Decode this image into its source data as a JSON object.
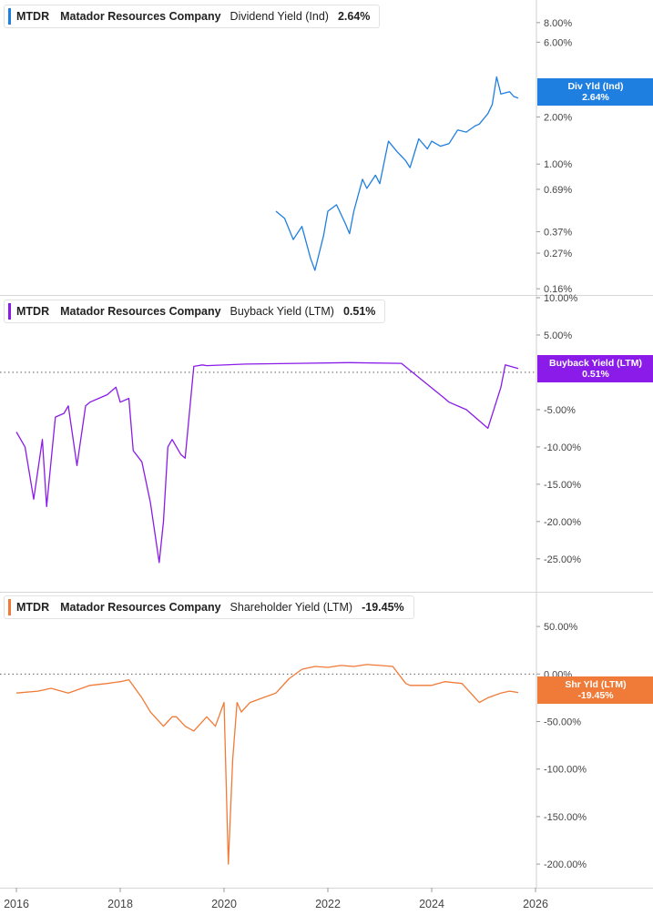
{
  "chart_data": [
    {
      "type": "line",
      "ticker": "MTDR",
      "company": "Matador Resources Company",
      "metric": "Dividend Yield (Ind)",
      "current_value": "2.64%",
      "tag_label": "Div Yld (Ind)",
      "tag_value": "2.64%",
      "color": "#1f7fe0",
      "y_scale": "log",
      "ylim": [
        0.15,
        9.5
      ],
      "y_ticks": [
        {
          "value": 8,
          "label": "8.00%"
        },
        {
          "value": 6,
          "label": "6.00%"
        },
        {
          "value": 2,
          "label": "2.00%"
        },
        {
          "value": 1,
          "label": "1.00%"
        },
        {
          "value": 0.69,
          "label": "0.69%"
        },
        {
          "value": 0.37,
          "label": "0.37%"
        },
        {
          "value": 0.27,
          "label": "0.27%"
        },
        {
          "value": 0.16,
          "label": "0.16%"
        }
      ],
      "series": [
        {
          "x": [
            "2021-01",
            "2021-03",
            "2021-05",
            "2021-07",
            "2021-09",
            "2021-10",
            "2021-12",
            "2022-01",
            "2022-03",
            "2022-05",
            "2022-06",
            "2022-07",
            "2022-09",
            "2022-10",
            "2022-12",
            "2023-01",
            "2023-03",
            "2023-05",
            "2023-07",
            "2023-08",
            "2023-10",
            "2023-12",
            "2024-01",
            "2024-03",
            "2024-05",
            "2024-07",
            "2024-09",
            "2024-11",
            "2024-12",
            "2025-02",
            "2025-03",
            "2025-04",
            "2025-05",
            "2025-07",
            "2025-08",
            "2025-09"
          ],
          "values": [
            0.5,
            0.45,
            0.33,
            0.4,
            0.25,
            0.21,
            0.35,
            0.5,
            0.55,
            0.42,
            0.36,
            0.5,
            0.8,
            0.7,
            0.85,
            0.75,
            1.4,
            1.2,
            1.05,
            0.95,
            1.45,
            1.25,
            1.4,
            1.3,
            1.35,
            1.65,
            1.6,
            1.75,
            1.8,
            2.1,
            2.4,
            3.6,
            2.8,
            2.9,
            2.7,
            2.64
          ]
        }
      ]
    },
    {
      "type": "line",
      "ticker": "MTDR",
      "company": "Matador Resources Company",
      "metric": "Buyback Yield (LTM)",
      "current_value": "0.51%",
      "tag_label": "Buyback Yield (LTM)",
      "tag_value": "0.51%",
      "color": "#8a1be8",
      "y_scale": "linear",
      "ylim": [
        -26,
        10
      ],
      "y_ticks": [
        {
          "value": 10,
          "label": "10.00%"
        },
        {
          "value": 5,
          "label": "5.00%"
        },
        {
          "value": -5,
          "label": "-5.00%"
        },
        {
          "value": -10,
          "label": "-10.00%"
        },
        {
          "value": -15,
          "label": "-15.00%"
        },
        {
          "value": -20,
          "label": "-20.00%"
        },
        {
          "value": -25,
          "label": "-25.00%"
        }
      ],
      "series": [
        {
          "x": [
            "2016-01",
            "2016-03",
            "2016-05",
            "2016-07",
            "2016-08",
            "2016-10",
            "2016-12",
            "2017-01",
            "2017-03",
            "2017-05",
            "2017-06",
            "2017-08",
            "2017-10",
            "2017-12",
            "2018-01",
            "2018-03",
            "2018-04",
            "2018-06",
            "2018-08",
            "2018-10",
            "2018-11",
            "2018-12",
            "2019-01",
            "2019-03",
            "2019-04",
            "2019-06",
            "2019-07",
            "2019-08",
            "2019-09",
            "2020-06",
            "2021-06",
            "2022-06",
            "2023-06",
            "2024-04",
            "2024-05",
            "2024-09",
            "2025-02",
            "2025-05",
            "2025-06",
            "2025-09"
          ],
          "values": [
            -8,
            -10,
            -17,
            -9,
            -18,
            -6,
            -5.5,
            -4.5,
            -12.5,
            -4.5,
            -4,
            -3.5,
            -3,
            -2,
            -4,
            -3.5,
            -10.5,
            -12,
            -17.5,
            -25.5,
            -20,
            -10,
            -9,
            -11,
            -11.5,
            0.8,
            0.9,
            1,
            0.9,
            1.1,
            1.2,
            1.3,
            1.2,
            -3.5,
            -4,
            -5,
            -7.5,
            -2,
            1,
            0.51
          ]
        }
      ]
    },
    {
      "type": "line",
      "ticker": "MTDR",
      "company": "Matador Resources Company",
      "metric": "Shareholder Yield (LTM)",
      "current_value": "-19.45%",
      "tag_label": "Shr Yld (LTM)",
      "tag_value": "-19.45%",
      "color": "#f07a37",
      "y_scale": "linear",
      "ylim": [
        -220,
        75
      ],
      "y_ticks": [
        {
          "value": 50,
          "label": "50.00%"
        },
        {
          "value": 0,
          "label": "0.00%"
        },
        {
          "value": -50,
          "label": "-50.00%"
        },
        {
          "value": -100,
          "label": "-100.00%"
        },
        {
          "value": -150,
          "label": "-150.00%"
        },
        {
          "value": -200,
          "label": "-200.00%"
        }
      ],
      "series": [
        {
          "x": [
            "2016-01",
            "2016-06",
            "2016-09",
            "2017-01",
            "2017-06",
            "2017-10",
            "2018-01",
            "2018-03",
            "2018-06",
            "2018-08",
            "2018-11",
            "2018-12",
            "2019-01",
            "2019-02",
            "2019-04",
            "2019-06",
            "2019-09",
            "2019-11",
            "2020-01",
            "2020-02",
            "2020-03",
            "2020-04",
            "2020-05",
            "2020-07",
            "2020-10",
            "2021-01",
            "2021-04",
            "2021-07",
            "2021-10",
            "2022-01",
            "2022-04",
            "2022-07",
            "2022-10",
            "2023-01",
            "2023-04",
            "2023-07",
            "2023-08",
            "2024-01",
            "2024-04",
            "2024-08",
            "2024-12",
            "2025-02",
            "2025-05",
            "2025-07",
            "2025-09"
          ],
          "values": [
            -20,
            -18,
            -15,
            -20,
            -12,
            -10,
            -8,
            -6,
            -25,
            -40,
            -55,
            -50,
            -45,
            -45,
            -55,
            -60,
            -45,
            -55,
            -30,
            -200,
            -90,
            -30,
            -40,
            -30,
            -25,
            -20,
            -5,
            5,
            8,
            7,
            9,
            8,
            10,
            9,
            8,
            -10,
            -12,
            -12,
            -8,
            -10,
            -30,
            -25,
            -20,
            -18,
            -19.45
          ]
        }
      ]
    }
  ],
  "x_axis": {
    "ticks": [
      {
        "date": "2016-01",
        "label": "2016"
      },
      {
        "date": "2018-01",
        "label": "2018"
      },
      {
        "date": "2020-01",
        "label": "2020"
      },
      {
        "date": "2022-01",
        "label": "2022"
      },
      {
        "date": "2024-01",
        "label": "2024"
      },
      {
        "date": "2026-01",
        "label": "2026"
      }
    ]
  }
}
